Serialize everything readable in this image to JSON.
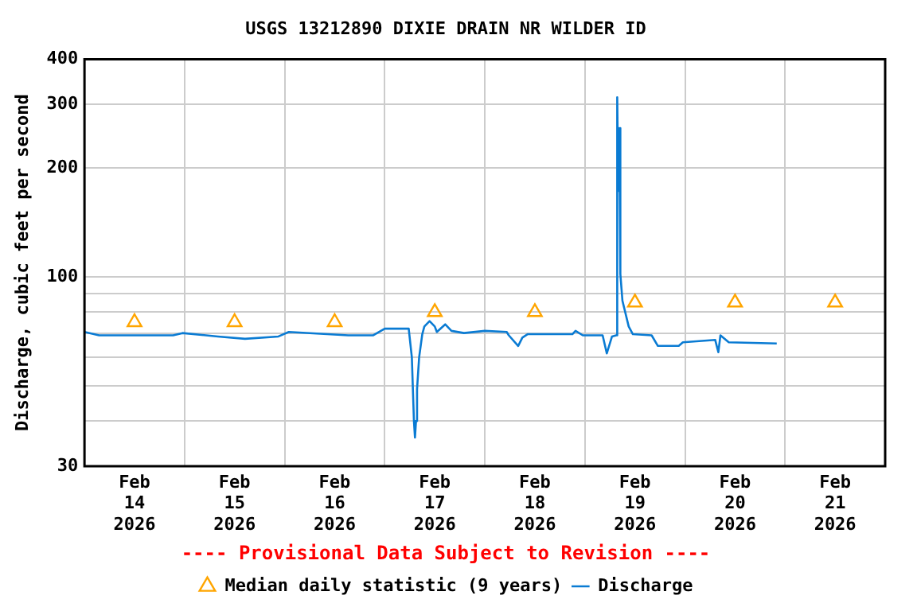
{
  "chart_data": {
    "type": "line",
    "title": "USGS 13212890 DIXIE DRAIN NR WILDER ID",
    "ylabel": "Discharge, cubic feet per second",
    "annotations": [
      "---- Provisional Data Subject to Revision ----"
    ],
    "log": "y",
    "grid": true,
    "legend": "bottom",
    "line_style": "solid",
    "xlim": [
      "2026-02-14T00:00",
      "2026-02-22T00:00"
    ],
    "xticks": [
      {
        "value": "2026-02-14T12:00",
        "label": "Feb\n14\n2026"
      },
      {
        "value": "2026-02-15T00:00",
        "label": null
      },
      {
        "value": "2026-02-15T12:00",
        "label": "Feb\n15\n2026"
      },
      {
        "value": "2026-02-16T00:00",
        "label": null
      },
      {
        "value": "2026-02-16T12:00",
        "label": "Feb\n16\n2026"
      },
      {
        "value": "2026-02-17T00:00",
        "label": null
      },
      {
        "value": "2026-02-17T12:00",
        "label": "Feb\n17\n2026"
      },
      {
        "value": "2026-02-18T00:00",
        "label": null
      },
      {
        "value": "2026-02-18T12:00",
        "label": "Feb\n18\n2026"
      },
      {
        "value": "2026-02-19T00:00",
        "label": null
      },
      {
        "value": "2026-02-19T12:00",
        "label": "Feb\n19\n2026"
      },
      {
        "value": "2026-02-20T00:00",
        "label": null
      },
      {
        "value": "2026-02-20T12:00",
        "label": "Feb\n20\n2026"
      },
      {
        "value": "2026-02-21T00:00",
        "label": null
      },
      {
        "value": "2026-02-21T12:00",
        "label": "Feb\n21\n2026"
      }
    ],
    "ylim": [
      30,
      400
    ],
    "yticks": [
      30,
      {
        "value": 40,
        "label": null
      },
      {
        "value": 50,
        "label": null
      },
      {
        "value": 60,
        "label": null
      },
      {
        "value": 70,
        "label": null
      },
      {
        "value": 80,
        "label": null
      },
      {
        "value": 90,
        "label": null
      },
      100,
      200,
      300,
      400
    ],
    "series": [
      {
        "name": "Median daily statistic (9 years)",
        "type": "scatter",
        "marker": "triangle",
        "color": "#ffa500",
        "x": [
          "2026-02-14T12:00",
          "2026-02-15T12:00",
          "2026-02-16T12:00",
          "2026-02-17T12:00",
          "2026-02-18T12:00",
          "2026-02-19T12:00",
          "2026-02-20T12:00",
          "2026-02-21T12:00"
        ],
        "values": [
          75,
          75,
          75,
          80,
          80,
          85,
          85,
          85
        ]
      },
      {
        "name": "Discharge",
        "marker": "none",
        "color": "#0a7bd3",
        "x": [
          "2026-02-14T00:00",
          "2026-02-14T03:30",
          "2026-02-14T10:00",
          "2026-02-14T21:15",
          "2026-02-14T23:30",
          "2026-02-15T08:00",
          "2026-02-15T14:30",
          "2026-02-15T22:30",
          "2026-02-16T01:00",
          "2026-02-16T15:15",
          "2026-02-16T21:15",
          "2026-02-17T00:00",
          "2026-02-17T05:45",
          "2026-02-17T06:30",
          "2026-02-17T07:00",
          "2026-02-17T07:15",
          "2026-02-17T07:30",
          "2026-02-17T07:45",
          "2026-02-17T08:15",
          "2026-02-17T09:00",
          "2026-02-17T09:30",
          "2026-02-17T10:45",
          "2026-02-17T12:00",
          "2026-02-17T12:30",
          "2026-02-17T14:30",
          "2026-02-17T16:00",
          "2026-02-17T19:00",
          "2026-02-18T00:00",
          "2026-02-18T05:15",
          "2026-02-18T05:45",
          "2026-02-18T08:00",
          "2026-02-18T09:00",
          "2026-02-18T10:15",
          "2026-02-18T21:00",
          "2026-02-18T21:45",
          "2026-02-18T23:30",
          "2026-02-19T04:15",
          "2026-02-19T05:15",
          "2026-02-19T06:30",
          "2026-02-19T07:30",
          "2026-02-19T07:45",
          "2026-02-19T08:00",
          "2026-02-19T08:15",
          "2026-02-19T08:30",
          "2026-02-19T09:00",
          "2026-02-19T10:30",
          "2026-02-19T11:30",
          "2026-02-19T16:00",
          "2026-02-19T17:30",
          "2026-02-19T22:30",
          "2026-02-19T23:30",
          "2026-02-20T07:15",
          "2026-02-20T08:00",
          "2026-02-20T08:30",
          "2026-02-20T10:30",
          "2026-02-20T22:00"
        ],
        "values": [
          70.5,
          69,
          69,
          69,
          70,
          68.5,
          67.5,
          68.5,
          70.5,
          69,
          69,
          72,
          72,
          60,
          40,
          36,
          40,
          49,
          60,
          69.5,
          73,
          75.5,
          73,
          70.5,
          74,
          71,
          70,
          71,
          70.5,
          69,
          64.5,
          68,
          69.5,
          69.5,
          71,
          69,
          69,
          61.5,
          68.5,
          69,
          314,
          173,
          258,
          102,
          86,
          73,
          69.5,
          69,
          64.5,
          64.5,
          66,
          67,
          62,
          69,
          66,
          65.5
        ]
      }
    ]
  }
}
